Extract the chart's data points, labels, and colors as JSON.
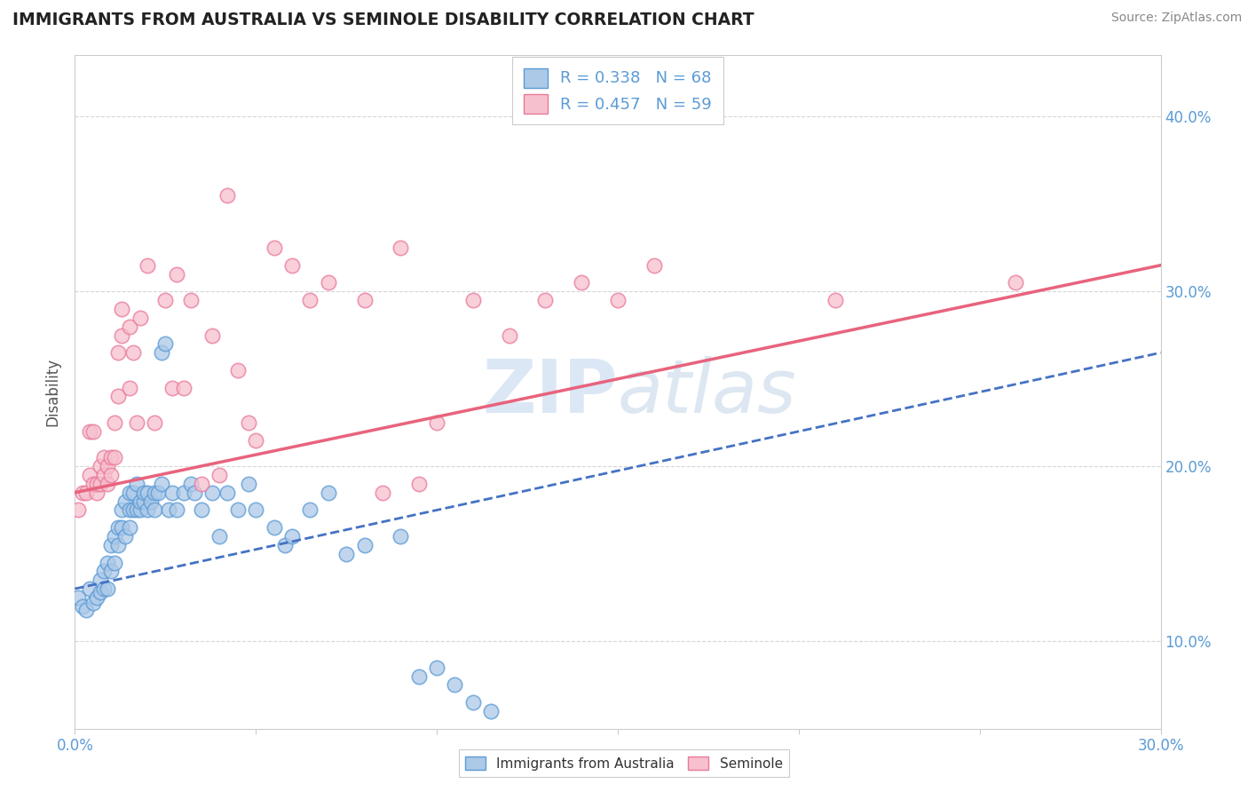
{
  "title": "IMMIGRANTS FROM AUSTRALIA VS SEMINOLE DISABILITY CORRELATION CHART",
  "source": "Source: ZipAtlas.com",
  "ylabel": "Disability",
  "xlim": [
    0.0,
    0.3
  ],
  "ylim": [
    0.05,
    0.435
  ],
  "xtick_positions": [
    0.0,
    0.05,
    0.1,
    0.15,
    0.2,
    0.25,
    0.3
  ],
  "xtick_labels": [
    "0.0%",
    "",
    "",
    "",
    "",
    "",
    "30.0%"
  ],
  "ytick_vals": [
    0.1,
    0.2,
    0.3,
    0.4
  ],
  "ytick_labels": [
    "10.0%",
    "20.0%",
    "30.0%",
    "40.0%"
  ],
  "watermark_text": "ZIPAtlas",
  "legend_r1": "R = 0.338",
  "legend_n1": "N = 68",
  "legend_r2": "R = 0.457",
  "legend_n2": "N = 59",
  "blue_fill": "#adc9e8",
  "blue_edge": "#5b9bd5",
  "pink_fill": "#f7c0ce",
  "pink_edge": "#e87a9a",
  "blue_line_color": "#4472c4",
  "pink_line_color": "#e8637d",
  "background": "#ffffff",
  "grid_color": "#cccccc",
  "blue_scatter": [
    [
      0.001,
      0.125
    ],
    [
      0.002,
      0.12
    ],
    [
      0.003,
      0.118
    ],
    [
      0.004,
      0.13
    ],
    [
      0.005,
      0.122
    ],
    [
      0.006,
      0.125
    ],
    [
      0.007,
      0.128
    ],
    [
      0.007,
      0.135
    ],
    [
      0.008,
      0.13
    ],
    [
      0.008,
      0.14
    ],
    [
      0.009,
      0.13
    ],
    [
      0.009,
      0.145
    ],
    [
      0.01,
      0.14
    ],
    [
      0.01,
      0.155
    ],
    [
      0.011,
      0.145
    ],
    [
      0.011,
      0.16
    ],
    [
      0.012,
      0.155
    ],
    [
      0.012,
      0.165
    ],
    [
      0.013,
      0.165
    ],
    [
      0.013,
      0.175
    ],
    [
      0.014,
      0.16
    ],
    [
      0.014,
      0.18
    ],
    [
      0.015,
      0.165
    ],
    [
      0.015,
      0.185
    ],
    [
      0.015,
      0.175
    ],
    [
      0.016,
      0.175
    ],
    [
      0.016,
      0.185
    ],
    [
      0.017,
      0.175
    ],
    [
      0.017,
      0.19
    ],
    [
      0.018,
      0.175
    ],
    [
      0.018,
      0.18
    ],
    [
      0.019,
      0.18
    ],
    [
      0.019,
      0.185
    ],
    [
      0.02,
      0.175
    ],
    [
      0.02,
      0.185
    ],
    [
      0.021,
      0.18
    ],
    [
      0.022,
      0.175
    ],
    [
      0.022,
      0.185
    ],
    [
      0.023,
      0.185
    ],
    [
      0.024,
      0.19
    ],
    [
      0.024,
      0.265
    ],
    [
      0.025,
      0.27
    ],
    [
      0.026,
      0.175
    ],
    [
      0.027,
      0.185
    ],
    [
      0.028,
      0.175
    ],
    [
      0.03,
      0.185
    ],
    [
      0.032,
      0.19
    ],
    [
      0.033,
      0.185
    ],
    [
      0.035,
      0.175
    ],
    [
      0.038,
      0.185
    ],
    [
      0.04,
      0.16
    ],
    [
      0.042,
      0.185
    ],
    [
      0.045,
      0.175
    ],
    [
      0.048,
      0.19
    ],
    [
      0.05,
      0.175
    ],
    [
      0.055,
      0.165
    ],
    [
      0.058,
      0.155
    ],
    [
      0.06,
      0.16
    ],
    [
      0.065,
      0.175
    ],
    [
      0.07,
      0.185
    ],
    [
      0.075,
      0.15
    ],
    [
      0.08,
      0.155
    ],
    [
      0.09,
      0.16
    ],
    [
      0.095,
      0.08
    ],
    [
      0.1,
      0.085
    ],
    [
      0.105,
      0.075
    ],
    [
      0.11,
      0.065
    ],
    [
      0.115,
      0.06
    ]
  ],
  "pink_scatter": [
    [
      0.001,
      0.175
    ],
    [
      0.002,
      0.185
    ],
    [
      0.003,
      0.185
    ],
    [
      0.004,
      0.195
    ],
    [
      0.004,
      0.22
    ],
    [
      0.005,
      0.19
    ],
    [
      0.005,
      0.22
    ],
    [
      0.006,
      0.185
    ],
    [
      0.006,
      0.19
    ],
    [
      0.007,
      0.19
    ],
    [
      0.007,
      0.2
    ],
    [
      0.008,
      0.195
    ],
    [
      0.008,
      0.205
    ],
    [
      0.009,
      0.19
    ],
    [
      0.009,
      0.2
    ],
    [
      0.01,
      0.195
    ],
    [
      0.01,
      0.205
    ],
    [
      0.011,
      0.205
    ],
    [
      0.011,
      0.225
    ],
    [
      0.012,
      0.24
    ],
    [
      0.012,
      0.265
    ],
    [
      0.013,
      0.275
    ],
    [
      0.013,
      0.29
    ],
    [
      0.015,
      0.245
    ],
    [
      0.015,
      0.28
    ],
    [
      0.016,
      0.265
    ],
    [
      0.017,
      0.225
    ],
    [
      0.018,
      0.285
    ],
    [
      0.02,
      0.315
    ],
    [
      0.022,
      0.225
    ],
    [
      0.025,
      0.295
    ],
    [
      0.027,
      0.245
    ],
    [
      0.028,
      0.31
    ],
    [
      0.03,
      0.245
    ],
    [
      0.032,
      0.295
    ],
    [
      0.035,
      0.19
    ],
    [
      0.038,
      0.275
    ],
    [
      0.04,
      0.195
    ],
    [
      0.042,
      0.355
    ],
    [
      0.045,
      0.255
    ],
    [
      0.048,
      0.225
    ],
    [
      0.05,
      0.215
    ],
    [
      0.055,
      0.325
    ],
    [
      0.06,
      0.315
    ],
    [
      0.065,
      0.295
    ],
    [
      0.07,
      0.305
    ],
    [
      0.08,
      0.295
    ],
    [
      0.085,
      0.185
    ],
    [
      0.09,
      0.325
    ],
    [
      0.095,
      0.19
    ],
    [
      0.1,
      0.225
    ],
    [
      0.11,
      0.295
    ],
    [
      0.12,
      0.275
    ],
    [
      0.13,
      0.295
    ],
    [
      0.14,
      0.305
    ],
    [
      0.15,
      0.295
    ],
    [
      0.16,
      0.315
    ],
    [
      0.21,
      0.295
    ],
    [
      0.26,
      0.305
    ]
  ],
  "blue_line_x": [
    0.0,
    0.3
  ],
  "blue_line_y": [
    0.13,
    0.265
  ],
  "pink_line_x": [
    0.0,
    0.3
  ],
  "pink_line_y": [
    0.185,
    0.315
  ]
}
